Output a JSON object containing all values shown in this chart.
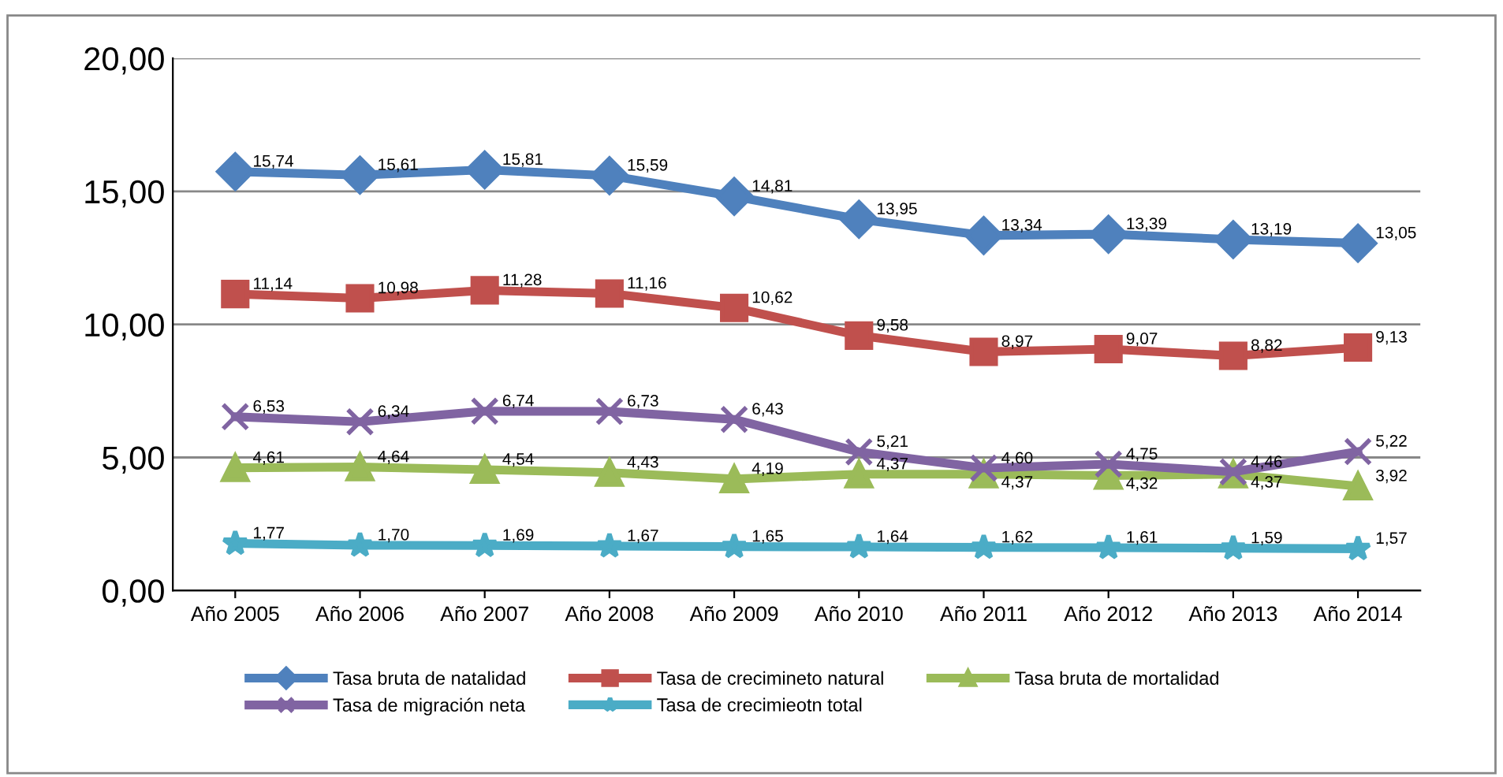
{
  "chart_data": {
    "type": "line",
    "categories": [
      "Año 2005",
      "Año 2006",
      "Año 2007",
      "Año 2008",
      "Año 2009",
      "Año 2010",
      "Año 2011",
      "Año 2012",
      "Año 2013",
      "Año 2014"
    ],
    "series": [
      {
        "name": "Tasa bruta de natalidad",
        "color": "#4f81bd",
        "marker": "diamond",
        "values": [
          15.74,
          15.61,
          15.81,
          15.59,
          14.81,
          13.95,
          13.34,
          13.39,
          13.19,
          13.05
        ],
        "value_labels": [
          "15,74",
          "15,61",
          "15,81",
          "15,59",
          "14,81",
          "13,95",
          "13,34",
          "13,39",
          "13,19",
          "13,05"
        ]
      },
      {
        "name": "Tasa de crecimineto natural",
        "color": "#c0504d",
        "marker": "square",
        "values": [
          11.14,
          10.98,
          11.28,
          11.16,
          10.62,
          9.58,
          8.97,
          9.07,
          8.82,
          9.13
        ],
        "value_labels": [
          "11,14",
          "10,98",
          "11,28",
          "11,16",
          "10,62",
          "9,58",
          "8,97",
          "9,07",
          "8,82",
          "9,13"
        ]
      },
      {
        "name": "Tasa bruta de mortalidad",
        "color": "#9bbb59",
        "marker": "triangle",
        "values": [
          4.61,
          4.64,
          4.54,
          4.43,
          4.19,
          4.37,
          4.37,
          4.32,
          4.37,
          3.92
        ],
        "value_labels": [
          "4,61",
          "4,64",
          "4,54",
          "4,43",
          "4,19",
          "4,37",
          "4,37",
          "4,32",
          "4,37",
          "3,92"
        ]
      },
      {
        "name": "Tasa de migración neta",
        "color": "#8064a2",
        "marker": "cross",
        "values": [
          6.53,
          6.34,
          6.74,
          6.73,
          6.43,
          5.21,
          4.6,
          4.75,
          4.46,
          5.22
        ],
        "value_labels": [
          "6,53",
          "6,34",
          "6,74",
          "6,73",
          "6,43",
          "5,21",
          "4,60",
          "4,75",
          "4,46",
          "5,22"
        ]
      },
      {
        "name": "Tasa de crecimieotn total",
        "color": "#4bacc6",
        "marker": "star",
        "values": [
          1.77,
          1.7,
          1.69,
          1.67,
          1.65,
          1.64,
          1.62,
          1.61,
          1.59,
          1.57
        ],
        "value_labels": [
          "1,77",
          "1,70",
          "1,69",
          "1,67",
          "1,65",
          "1,64",
          "1,62",
          "1,61",
          "1,59",
          "1,57"
        ]
      }
    ],
    "ylim": [
      0,
      20
    ],
    "yticks": [
      {
        "value": 0,
        "label": "0,00"
      },
      {
        "value": 5,
        "label": "5,00"
      },
      {
        "value": 10,
        "label": "10,00"
      },
      {
        "value": 15,
        "label": "15,00"
      },
      {
        "value": 20,
        "label": "20,00"
      }
    ],
    "grid": "y",
    "legend": "bottom",
    "line_style": "solid"
  }
}
